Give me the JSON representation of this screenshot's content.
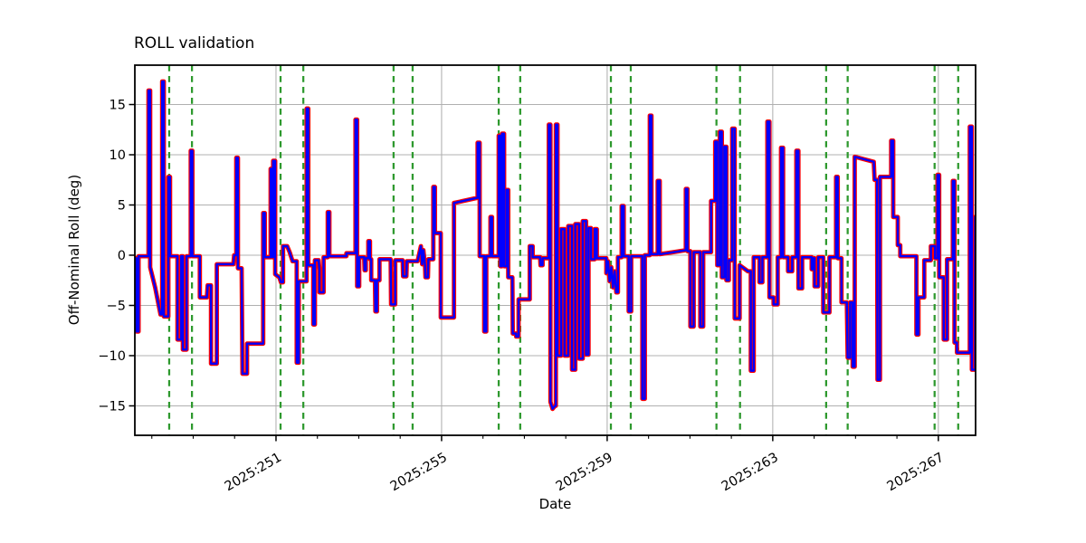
{
  "chart_data": {
    "type": "line",
    "title": "ROLL validation",
    "xlabel": "Date",
    "ylabel": "Off-Nominal Roll (deg)",
    "xlim": [
      247.59,
      267.9
    ],
    "ylim": [
      -17.93,
      18.92
    ],
    "grid": true,
    "grid_color": "#b0b0b0",
    "background": "#ffffff",
    "spine_color": "#000000",
    "x_major_ticks": [
      251,
      255,
      259,
      263,
      267
    ],
    "x_major_tick_labels": [
      "2025:251",
      "2025:255",
      "2025:259",
      "2025:263",
      "2025:267"
    ],
    "x_tick_label_rotation_deg": 30,
    "x_minor_ticks": [
      248,
      249,
      250,
      252,
      253,
      254,
      256,
      257,
      258,
      260,
      261,
      262,
      264,
      265,
      266
    ],
    "y_ticks": [
      -15,
      -10,
      -5,
      0,
      5,
      10,
      15
    ],
    "y_tick_labels": [
      "−15",
      "−10",
      "−5",
      "0",
      "5",
      "10",
      "15"
    ],
    "vlines": {
      "style": "dashed",
      "color": "#2e992e",
      "x": [
        248.42,
        248.97,
        251.11,
        251.66,
        253.84,
        254.3,
        256.38,
        256.9,
        259.09,
        259.57,
        261.64,
        262.21,
        264.29,
        264.81,
        266.91,
        267.48
      ]
    },
    "series": [
      {
        "name": "reference-roll-red",
        "color": "#ff0000",
        "stroke_width": 4.8,
        "points_ref": "shared"
      },
      {
        "name": "computed-roll-blue",
        "color": "#0000ff",
        "stroke_width": 2.4,
        "points_ref": "shared"
      }
    ],
    "points": [
      [
        247.59,
        -0.3
      ],
      [
        247.63,
        -0.3
      ],
      [
        247.63,
        -7.6
      ],
      [
        247.68,
        -7.6
      ],
      [
        247.68,
        -0.1
      ],
      [
        247.92,
        -0.1
      ],
      [
        247.92,
        16.4
      ],
      [
        247.96,
        16.4
      ],
      [
        247.96,
        -1.2
      ],
      [
        248.08,
        -3.2
      ],
      [
        248.21,
        -5.9
      ],
      [
        248.25,
        -5.9
      ],
      [
        248.25,
        17.3
      ],
      [
        248.29,
        17.3
      ],
      [
        248.29,
        -6.1
      ],
      [
        248.4,
        -6.1
      ],
      [
        248.4,
        7.8
      ],
      [
        248.44,
        7.8
      ],
      [
        248.44,
        -0.1
      ],
      [
        248.62,
        -0.1
      ],
      [
        248.62,
        -8.4
      ],
      [
        248.71,
        -8.4
      ],
      [
        248.71,
        -0.1
      ],
      [
        248.75,
        -0.1
      ],
      [
        248.75,
        -9.4
      ],
      [
        248.84,
        -9.4
      ],
      [
        248.84,
        -0.1
      ],
      [
        248.94,
        -0.1
      ],
      [
        248.94,
        10.4
      ],
      [
        248.98,
        10.4
      ],
      [
        248.98,
        -0.1
      ],
      [
        249.16,
        -0.1
      ],
      [
        249.16,
        -4.2
      ],
      [
        249.33,
        -4.2
      ],
      [
        249.35,
        -3.0
      ],
      [
        249.43,
        -3.0
      ],
      [
        249.43,
        -10.8
      ],
      [
        249.57,
        -10.8
      ],
      [
        249.57,
        -0.9
      ],
      [
        249.97,
        -0.9
      ],
      [
        249.99,
        0.0
      ],
      [
        250.04,
        0.0
      ],
      [
        250.04,
        9.7
      ],
      [
        250.08,
        9.7
      ],
      [
        250.08,
        -1.3
      ],
      [
        250.17,
        -1.3
      ],
      [
        250.19,
        -11.8
      ],
      [
        250.3,
        -11.8
      ],
      [
        250.3,
        -8.8
      ],
      [
        250.69,
        -8.8
      ],
      [
        250.69,
        4.2
      ],
      [
        250.73,
        4.2
      ],
      [
        250.73,
        -0.2
      ],
      [
        250.87,
        -0.2
      ],
      [
        250.87,
        8.6
      ],
      [
        250.91,
        8.6
      ],
      [
        250.91,
        -0.2
      ],
      [
        250.93,
        -0.2
      ],
      [
        250.93,
        9.4
      ],
      [
        250.98,
        9.4
      ],
      [
        250.98,
        -1.9
      ],
      [
        251.08,
        -2.2
      ],
      [
        251.12,
        -2.7
      ],
      [
        251.17,
        -2.7
      ],
      [
        251.17,
        0.9
      ],
      [
        251.27,
        0.9
      ],
      [
        251.33,
        0.3
      ],
      [
        251.4,
        -0.6
      ],
      [
        251.5,
        -0.6
      ],
      [
        251.5,
        -10.7
      ],
      [
        251.55,
        -10.7
      ],
      [
        251.55,
        -2.6
      ],
      [
        251.74,
        -2.6
      ],
      [
        251.74,
        14.6
      ],
      [
        251.78,
        14.6
      ],
      [
        251.78,
        -1.0
      ],
      [
        251.9,
        -1.0
      ],
      [
        251.9,
        -6.9
      ],
      [
        251.94,
        -6.9
      ],
      [
        251.94,
        -0.5
      ],
      [
        252.03,
        -0.5
      ],
      [
        252.05,
        -1.5
      ],
      [
        252.05,
        -3.7
      ],
      [
        252.15,
        -3.7
      ],
      [
        252.15,
        -0.2
      ],
      [
        252.25,
        -0.2
      ],
      [
        252.25,
        4.3
      ],
      [
        252.29,
        4.3
      ],
      [
        252.29,
        -0.1
      ],
      [
        252.7,
        -0.1
      ],
      [
        252.7,
        0.2
      ],
      [
        252.9,
        0.2
      ],
      [
        252.92,
        0.2
      ],
      [
        252.92,
        13.5
      ],
      [
        252.96,
        13.5
      ],
      [
        252.96,
        -3.1
      ],
      [
        253.01,
        -3.1
      ],
      [
        253.01,
        -0.2
      ],
      [
        253.13,
        -0.2
      ],
      [
        253.14,
        -1.5
      ],
      [
        253.17,
        -1.5
      ],
      [
        253.17,
        -0.3
      ],
      [
        253.23,
        -0.3
      ],
      [
        253.23,
        1.4
      ],
      [
        253.27,
        1.4
      ],
      [
        253.27,
        -0.4
      ],
      [
        253.3,
        -0.4
      ],
      [
        253.3,
        -2.5
      ],
      [
        253.39,
        -2.5
      ],
      [
        253.4,
        -5.6
      ],
      [
        253.44,
        -5.6
      ],
      [
        253.44,
        -2.5
      ],
      [
        253.5,
        -2.5
      ],
      [
        253.5,
        -0.4
      ],
      [
        253.77,
        -0.4
      ],
      [
        253.78,
        -4.9
      ],
      [
        253.88,
        -4.9
      ],
      [
        253.88,
        -0.5
      ],
      [
        254.06,
        -0.5
      ],
      [
        254.07,
        -2.1
      ],
      [
        254.15,
        -2.1
      ],
      [
        254.16,
        -0.6
      ],
      [
        254.42,
        -0.6
      ],
      [
        254.5,
        0.9
      ],
      [
        254.53,
        -0.9
      ],
      [
        254.56,
        0.5
      ],
      [
        254.6,
        -1.0
      ],
      [
        254.61,
        -2.2
      ],
      [
        254.67,
        -2.2
      ],
      [
        254.68,
        -0.4
      ],
      [
        254.8,
        -0.4
      ],
      [
        254.8,
        6.8
      ],
      [
        254.84,
        6.8
      ],
      [
        254.84,
        2.2
      ],
      [
        254.97,
        2.2
      ],
      [
        254.98,
        2.2
      ],
      [
        254.98,
        -6.2
      ],
      [
        255.3,
        -6.2
      ],
      [
        255.3,
        5.2
      ],
      [
        255.85,
        5.7
      ],
      [
        255.87,
        5.7
      ],
      [
        255.87,
        11.2
      ],
      [
        255.92,
        11.2
      ],
      [
        255.92,
        -0.1
      ],
      [
        256.03,
        -0.1
      ],
      [
        256.03,
        -7.6
      ],
      [
        256.08,
        -7.6
      ],
      [
        256.08,
        -0.1
      ],
      [
        256.18,
        -0.1
      ],
      [
        256.18,
        3.8
      ],
      [
        256.22,
        3.8
      ],
      [
        256.22,
        -0.1
      ],
      [
        256.38,
        -0.1
      ],
      [
        256.38,
        11.9
      ],
      [
        256.42,
        11.9
      ],
      [
        256.42,
        -1.1
      ],
      [
        256.46,
        -1.1
      ],
      [
        256.46,
        12.1
      ],
      [
        256.51,
        12.1
      ],
      [
        256.51,
        -1.1
      ],
      [
        256.57,
        -1.1
      ],
      [
        256.57,
        6.5
      ],
      [
        256.61,
        6.5
      ],
      [
        256.61,
        -2.2
      ],
      [
        256.71,
        -2.2
      ],
      [
        256.72,
        -7.8
      ],
      [
        256.8,
        -7.8
      ],
      [
        256.8,
        -8.1
      ],
      [
        256.86,
        -8.1
      ],
      [
        256.86,
        -4.4
      ],
      [
        257.13,
        -4.4
      ],
      [
        257.13,
        0.9
      ],
      [
        257.2,
        0.9
      ],
      [
        257.2,
        -0.2
      ],
      [
        257.38,
        -0.2
      ],
      [
        257.39,
        -1.0
      ],
      [
        257.44,
        -1.0
      ],
      [
        257.44,
        -0.3
      ],
      [
        257.59,
        -0.3
      ],
      [
        257.59,
        13.0
      ],
      [
        257.63,
        13.0
      ],
      [
        257.63,
        -14.6
      ],
      [
        257.68,
        -15.3
      ],
      [
        257.74,
        -15.0
      ],
      [
        257.76,
        -15.0
      ],
      [
        257.76,
        13.0
      ],
      [
        257.8,
        13.0
      ],
      [
        257.8,
        -10.0
      ],
      [
        257.89,
        -10.0
      ],
      [
        257.89,
        2.6
      ],
      [
        257.97,
        2.6
      ],
      [
        257.97,
        -10.0
      ],
      [
        258.06,
        -10.0
      ],
      [
        258.06,
        2.9
      ],
      [
        258.15,
        2.9
      ],
      [
        258.15,
        -11.4
      ],
      [
        258.23,
        -11.4
      ],
      [
        258.23,
        3.1
      ],
      [
        258.32,
        3.1
      ],
      [
        258.32,
        -10.3
      ],
      [
        258.41,
        -10.3
      ],
      [
        258.41,
        3.4
      ],
      [
        258.49,
        3.4
      ],
      [
        258.49,
        -9.9
      ],
      [
        258.55,
        -9.9
      ],
      [
        258.55,
        2.7
      ],
      [
        258.61,
        2.7
      ],
      [
        258.61,
        -0.4
      ],
      [
        258.7,
        -0.4
      ],
      [
        258.7,
        2.6
      ],
      [
        258.75,
        2.6
      ],
      [
        258.75,
        -0.3
      ],
      [
        258.98,
        -0.3
      ],
      [
        258.98,
        -1.8
      ],
      [
        259.02,
        -0.6
      ],
      [
        259.06,
        -2.6
      ],
      [
        259.1,
        -1.2
      ],
      [
        259.14,
        -3.2
      ],
      [
        259.18,
        -1.6
      ],
      [
        259.22,
        -3.7
      ],
      [
        259.26,
        -3.7
      ],
      [
        259.26,
        -0.2
      ],
      [
        259.35,
        -0.2
      ],
      [
        259.35,
        4.9
      ],
      [
        259.4,
        4.9
      ],
      [
        259.4,
        -0.1
      ],
      [
        259.52,
        -0.1
      ],
      [
        259.52,
        -5.6
      ],
      [
        259.58,
        -5.6
      ],
      [
        259.58,
        -0.1
      ],
      [
        259.85,
        -0.1
      ],
      [
        259.85,
        -14.3
      ],
      [
        259.91,
        -14.3
      ],
      [
        259.91,
        0.0
      ],
      [
        260.03,
        0.0
      ],
      [
        260.03,
        13.9
      ],
      [
        260.07,
        13.9
      ],
      [
        260.07,
        0.1
      ],
      [
        260.22,
        0.1
      ],
      [
        260.22,
        7.4
      ],
      [
        260.27,
        7.4
      ],
      [
        260.27,
        0.1
      ],
      [
        260.6,
        0.3
      ],
      [
        260.9,
        0.5
      ],
      [
        260.9,
        6.6
      ],
      [
        260.94,
        6.6
      ],
      [
        260.94,
        0.4
      ],
      [
        261.01,
        0.4
      ],
      [
        261.01,
        -7.1
      ],
      [
        261.09,
        -7.1
      ],
      [
        261.09,
        0.3
      ],
      [
        261.25,
        0.3
      ],
      [
        261.25,
        -7.1
      ],
      [
        261.32,
        -7.1
      ],
      [
        261.32,
        0.3
      ],
      [
        261.51,
        0.3
      ],
      [
        261.51,
        5.4
      ],
      [
        261.61,
        5.4
      ],
      [
        261.61,
        11.3
      ],
      [
        261.66,
        11.3
      ],
      [
        261.66,
        -1.0
      ],
      [
        261.72,
        -1.0
      ],
      [
        261.72,
        12.3
      ],
      [
        261.77,
        12.3
      ],
      [
        261.77,
        -2.2
      ],
      [
        261.83,
        -2.2
      ],
      [
        261.83,
        10.8
      ],
      [
        261.88,
        10.8
      ],
      [
        261.88,
        -2.5
      ],
      [
        261.94,
        -2.5
      ],
      [
        261.94,
        -0.5
      ],
      [
        262.02,
        -0.5
      ],
      [
        262.02,
        12.6
      ],
      [
        262.08,
        12.6
      ],
      [
        262.08,
        -6.3
      ],
      [
        262.2,
        -6.3
      ],
      [
        262.2,
        -1.0
      ],
      [
        262.4,
        -1.6
      ],
      [
        262.47,
        -1.6
      ],
      [
        262.47,
        -11.5
      ],
      [
        262.54,
        -11.5
      ],
      [
        262.54,
        -0.2
      ],
      [
        262.68,
        -0.2
      ],
      [
        262.68,
        -2.7
      ],
      [
        262.75,
        -2.7
      ],
      [
        262.75,
        -0.2
      ],
      [
        262.87,
        -0.2
      ],
      [
        262.87,
        13.3
      ],
      [
        262.92,
        13.3
      ],
      [
        262.92,
        -4.2
      ],
      [
        263.02,
        -4.2
      ],
      [
        263.02,
        -4.9
      ],
      [
        263.12,
        -4.9
      ],
      [
        263.12,
        -0.2
      ],
      [
        263.2,
        -0.2
      ],
      [
        263.2,
        10.7
      ],
      [
        263.25,
        10.7
      ],
      [
        263.25,
        -0.2
      ],
      [
        263.37,
        -0.2
      ],
      [
        263.37,
        -1.6
      ],
      [
        263.47,
        -1.6
      ],
      [
        263.47,
        -0.2
      ],
      [
        263.57,
        -0.2
      ],
      [
        263.57,
        10.4
      ],
      [
        263.62,
        10.4
      ],
      [
        263.62,
        -3.3
      ],
      [
        263.71,
        -3.3
      ],
      [
        263.71,
        -0.2
      ],
      [
        263.94,
        -0.2
      ],
      [
        263.94,
        -1.4
      ],
      [
        263.98,
        -1.4
      ],
      [
        263.98,
        -0.3
      ],
      [
        264.01,
        -0.3
      ],
      [
        264.01,
        -3.1
      ],
      [
        264.1,
        -3.1
      ],
      [
        264.1,
        -0.2
      ],
      [
        264.22,
        -0.2
      ],
      [
        264.22,
        -5.7
      ],
      [
        264.37,
        -5.7
      ],
      [
        264.37,
        -0.2
      ],
      [
        264.53,
        -0.2
      ],
      [
        264.53,
        7.8
      ],
      [
        264.57,
        7.8
      ],
      [
        264.57,
        -0.3
      ],
      [
        264.66,
        -0.3
      ],
      [
        264.66,
        -4.7
      ],
      [
        264.79,
        -4.7
      ],
      [
        264.81,
        -10.2
      ],
      [
        264.87,
        -10.2
      ],
      [
        264.87,
        -4.7
      ],
      [
        264.93,
        -4.7
      ],
      [
        264.93,
        -11.1
      ],
      [
        264.98,
        -11.1
      ],
      [
        264.98,
        9.8
      ],
      [
        265.44,
        9.3
      ],
      [
        265.46,
        7.5
      ],
      [
        265.52,
        7.5
      ],
      [
        265.53,
        -12.4
      ],
      [
        265.59,
        -12.4
      ],
      [
        265.59,
        7.8
      ],
      [
        265.84,
        7.8
      ],
      [
        265.86,
        7.8
      ],
      [
        265.86,
        11.4
      ],
      [
        265.91,
        11.4
      ],
      [
        265.91,
        3.8
      ],
      [
        266.02,
        3.8
      ],
      [
        266.02,
        1.0
      ],
      [
        266.08,
        1.0
      ],
      [
        266.08,
        -0.1
      ],
      [
        266.47,
        -0.1
      ],
      [
        266.47,
        -7.9
      ],
      [
        266.52,
        -7.9
      ],
      [
        266.52,
        -4.2
      ],
      [
        266.66,
        -4.2
      ],
      [
        266.66,
        -0.5
      ],
      [
        266.82,
        -0.5
      ],
      [
        266.82,
        0.9
      ],
      [
        266.92,
        0.9
      ],
      [
        266.92,
        -0.3
      ],
      [
        266.98,
        -0.3
      ],
      [
        266.98,
        8.0
      ],
      [
        267.02,
        8.0
      ],
      [
        267.02,
        -2.2
      ],
      [
        267.13,
        -2.2
      ],
      [
        267.13,
        -8.4
      ],
      [
        267.21,
        -8.4
      ],
      [
        267.21,
        -0.4
      ],
      [
        267.35,
        -0.4
      ],
      [
        267.35,
        7.4
      ],
      [
        267.39,
        7.4
      ],
      [
        267.39,
        -8.7
      ],
      [
        267.45,
        -8.7
      ],
      [
        267.45,
        -9.7
      ],
      [
        267.74,
        -9.7
      ],
      [
        267.76,
        -9.7
      ],
      [
        267.76,
        12.8
      ],
      [
        267.81,
        12.8
      ],
      [
        267.81,
        -11.4
      ],
      [
        267.89,
        -11.4
      ],
      [
        267.89,
        3.8
      ],
      [
        267.9,
        3.8
      ]
    ]
  }
}
